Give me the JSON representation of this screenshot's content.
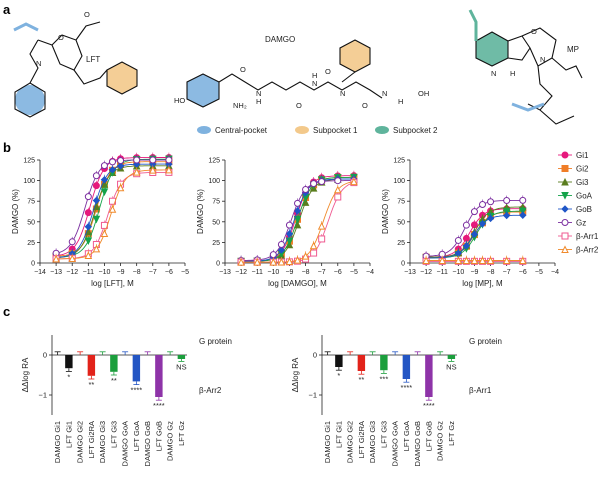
{
  "panel_labels": {
    "a": "a",
    "b": "b",
    "c": "c"
  },
  "panel_a": {
    "molecules": [
      {
        "name": "LFT"
      },
      {
        "name": "DAMGO",
        "atoms": [
          "HO",
          "NH₂",
          "H",
          "N",
          "H",
          "N",
          "N",
          "N",
          "OH",
          "O",
          "O",
          "O",
          "O",
          "H"
        ]
      },
      {
        "name": "MP",
        "atoms": [
          "O",
          "N",
          "H",
          "N"
        ]
      }
    ],
    "legend": [
      {
        "label": "Central-pocket",
        "color": "#7fb2df"
      },
      {
        "label": "Subpocket 1",
        "color": "#f3c98b"
      },
      {
        "label": "Subpocket 2",
        "color": "#5fb49c"
      }
    ]
  },
  "colors": {
    "Gi1": "#e6197c",
    "Gi2": "#f07d27",
    "Gi3": "#5a7d1e",
    "GoA": "#15a34a",
    "GoB": "#1f56c7",
    "Gz": "#7b2fa0",
    "β-Arr1": "#ef5a90",
    "β-Arr2": "#f08a2c",
    "black": "#111111",
    "red": "#e2231a",
    "green": "#1b9e3c",
    "blue": "#2456c4",
    "purple": "#8e33a8"
  },
  "chart_data": [
    {
      "type": "line",
      "panel": "b1",
      "xlabel": "log [LFT], M",
      "ylabel": "DAMGO (%)",
      "xlim": [
        -14,
        -5
      ],
      "ylim": [
        0,
        125
      ],
      "xticks": [
        "-14",
        "-13",
        "-12",
        "-11",
        "-10",
        "-9",
        "-8",
        "-7",
        "-6",
        "-5"
      ],
      "yticks": [
        "0",
        "25",
        "50",
        "75",
        "100",
        "125"
      ],
      "x": [
        -13,
        -12,
        -11,
        -10.5,
        -10,
        -9.5,
        -9,
        -8,
        -7,
        -6
      ],
      "series": [
        {
          "name": "Gi1",
          "ec50": -10.9,
          "top": 128,
          "bottom": 8,
          "hill": 1.0
        },
        {
          "name": "Gi2",
          "ec50": -10.5,
          "top": 123,
          "bottom": 8,
          "hill": 1.0
        },
        {
          "name": "Gi3",
          "ec50": -10.6,
          "top": 118,
          "bottom": 6,
          "hill": 1.0
        },
        {
          "name": "GoA",
          "ec50": -10.3,
          "top": 126,
          "bottom": 7,
          "hill": 1.0
        },
        {
          "name": "GoB",
          "ec50": -10.7,
          "top": 120,
          "bottom": 6,
          "hill": 1.0
        },
        {
          "name": "Gz",
          "ec50": -11.2,
          "top": 125,
          "bottom": 10,
          "hill": 1.0
        },
        {
          "name": "β-Arr1",
          "ec50": -9.8,
          "top": 110,
          "bottom": 5,
          "hill": 1.0
        },
        {
          "name": "β-Arr2",
          "ec50": -9.6,
          "top": 113,
          "bottom": 5,
          "hill": 1.0
        }
      ]
    },
    {
      "type": "line",
      "panel": "b2",
      "xlabel": "log [DAMGO], M",
      "ylabel": "DAMGO (%)",
      "xlim": [
        -13,
        -4
      ],
      "ylim": [
        0,
        125
      ],
      "xticks": [
        "-13",
        "-12",
        "-11",
        "-10",
        "-9",
        "-8",
        "-7",
        "-6",
        "-5",
        "-4"
      ],
      "yticks": [
        "0",
        "25",
        "50",
        "75",
        "100",
        "125"
      ],
      "x": [
        -12,
        -11,
        -10,
        -9.5,
        -9,
        -8.5,
        -8,
        -7.5,
        -7,
        -6,
        -5
      ],
      "series": [
        {
          "name": "Gi1",
          "ec50": -8.6,
          "top": 106,
          "bottom": 2,
          "hill": 1.0
        },
        {
          "name": "Gi2",
          "ec50": -8.5,
          "top": 104,
          "bottom": 2,
          "hill": 1.0
        },
        {
          "name": "Gi3",
          "ec50": -8.4,
          "top": 102,
          "bottom": 2,
          "hill": 1.0
        },
        {
          "name": "GoA",
          "ec50": -8.5,
          "top": 104,
          "bottom": 2,
          "hill": 1.0
        },
        {
          "name": "GoB",
          "ec50": -8.7,
          "top": 102,
          "bottom": 2,
          "hill": 1.0
        },
        {
          "name": "Gz",
          "ec50": -8.9,
          "top": 100,
          "bottom": 3,
          "hill": 1.0
        },
        {
          "name": "β-Arr1",
          "ec50": -6.6,
          "top": 100,
          "bottom": 1,
          "hill": 1.0
        },
        {
          "name": "β-Arr2",
          "ec50": -6.9,
          "top": 100,
          "bottom": 1,
          "hill": 1.0
        }
      ]
    },
    {
      "type": "line",
      "panel": "b3",
      "xlabel": "log [MP], M",
      "ylabel": "DAMGO (%)",
      "xlim": [
        -13,
        -4
      ],
      "ylim": [
        0,
        125
      ],
      "xticks": [
        "-13",
        "-12",
        "-11",
        "-10",
        "-9",
        "-8",
        "-7",
        "-6",
        "-5",
        "-4"
      ],
      "yticks": [
        "0",
        "25",
        "50",
        "75",
        "100",
        "125"
      ],
      "x": [
        -12,
        -11,
        -10,
        -9.5,
        -9,
        -8.5,
        -8,
        -7,
        -6
      ],
      "series": [
        {
          "name": "Gi1",
          "ec50": -9.3,
          "top": 66,
          "bottom": 7,
          "hill": 1.0
        },
        {
          "name": "Gi2",
          "ec50": -9.0,
          "top": 62,
          "bottom": 7,
          "hill": 1.0
        },
        {
          "name": "Gi3",
          "ec50": -9.0,
          "top": 68,
          "bottom": 7,
          "hill": 1.0
        },
        {
          "name": "GoA",
          "ec50": -8.9,
          "top": 63,
          "bottom": 6,
          "hill": 1.0
        },
        {
          "name": "GoB",
          "ec50": -9.1,
          "top": 58,
          "bottom": 6,
          "hill": 1.0
        },
        {
          "name": "Gz",
          "ec50": -9.6,
          "top": 76,
          "bottom": 8,
          "hill": 1.0
        },
        {
          "name": "β-Arr1",
          "ec50": -9.0,
          "top": 2,
          "bottom": 2,
          "hill": 1.0
        },
        {
          "name": "β-Arr2",
          "ec50": -9.0,
          "top": 3,
          "bottom": 3,
          "hill": 1.0
        }
      ]
    },
    {
      "type": "bar",
      "panel": "c1",
      "ylabel": "ΔΔlog RA",
      "ylim": [
        -1.5,
        0.5
      ],
      "yticks": [
        "-1",
        "0"
      ],
      "top_label": "G protein",
      "bottom_label": "β-Arr2",
      "categories": [
        "DAMGO Gi1",
        "LFT Gi1",
        "DAMGO Gi2",
        "LFT Gi2RA",
        "DAMGO Gi3",
        "LFT Gi3",
        "DAMGO GoA",
        "LFT GoA",
        "DAMGO GoB",
        "LFT GoB",
        "DAMGO Gz",
        "LFT Gz"
      ],
      "values": [
        0,
        -0.33,
        0,
        -0.52,
        0,
        -0.42,
        0,
        -0.66,
        0,
        -1.05,
        0,
        -0.1
      ],
      "errors": [
        0.08,
        0.08,
        0.08,
        0.08,
        0.08,
        0.08,
        0.08,
        0.08,
        0.08,
        0.08,
        0.08,
        0.06
      ],
      "bar_colors": [
        "#111111",
        "#111111",
        "#e2231a",
        "#e2231a",
        "#1b9e3c",
        "#1b9e3c",
        "#2456c4",
        "#2456c4",
        "#8e33a8",
        "#8e33a8",
        "#1b9e3c",
        "#1b9e3c"
      ],
      "significance": [
        "",
        "*",
        "",
        "**",
        "",
        "**",
        "",
        "****",
        "",
        "****",
        "",
        "NS"
      ]
    },
    {
      "type": "bar",
      "panel": "c2",
      "ylabel": "ΔΔlog RA",
      "ylim": [
        -1.5,
        0.5
      ],
      "yticks": [
        "-1",
        "0"
      ],
      "top_label": "G protein",
      "bottom_label": "β-Arr1",
      "categories": [
        "DAMGO Gi1",
        "LFT Gi1",
        "DAMGO Gi2",
        "LFT Gi2RA",
        "DAMGO Gi3",
        "LFT Gi3",
        "DAMGO GoA",
        "LFT GoA",
        "DAMGO GoB",
        "LFT GoB",
        "DAMGO Gz",
        "LFT Gz"
      ],
      "values": [
        0,
        -0.3,
        0,
        -0.4,
        0,
        -0.38,
        0,
        -0.6,
        0,
        -1.05,
        0,
        -0.1
      ],
      "errors": [
        0.08,
        0.08,
        0.08,
        0.08,
        0.08,
        0.08,
        0.08,
        0.08,
        0.08,
        0.08,
        0.08,
        0.06
      ],
      "bar_colors": [
        "#111111",
        "#111111",
        "#e2231a",
        "#e2231a",
        "#1b9e3c",
        "#1b9e3c",
        "#2456c4",
        "#2456c4",
        "#8e33a8",
        "#8e33a8",
        "#1b9e3c",
        "#1b9e3c"
      ],
      "significance": [
        "",
        "*",
        "",
        "**",
        "",
        "***",
        "",
        "****",
        "",
        "****",
        "",
        "NS"
      ]
    }
  ],
  "b_legend": [
    {
      "name": "Gi1",
      "marker": "circle-filled"
    },
    {
      "name": "Gi2",
      "marker": "square-filled"
    },
    {
      "name": "Gi3",
      "marker": "triangle-filled"
    },
    {
      "name": "GoA",
      "marker": "triangle-down-filled"
    },
    {
      "name": "GoB",
      "marker": "diamond-filled"
    },
    {
      "name": "Gz",
      "marker": "circle-open"
    },
    {
      "name": "β-Arr1",
      "marker": "square-open"
    },
    {
      "name": "β-Arr2",
      "marker": "triangle-open"
    }
  ]
}
